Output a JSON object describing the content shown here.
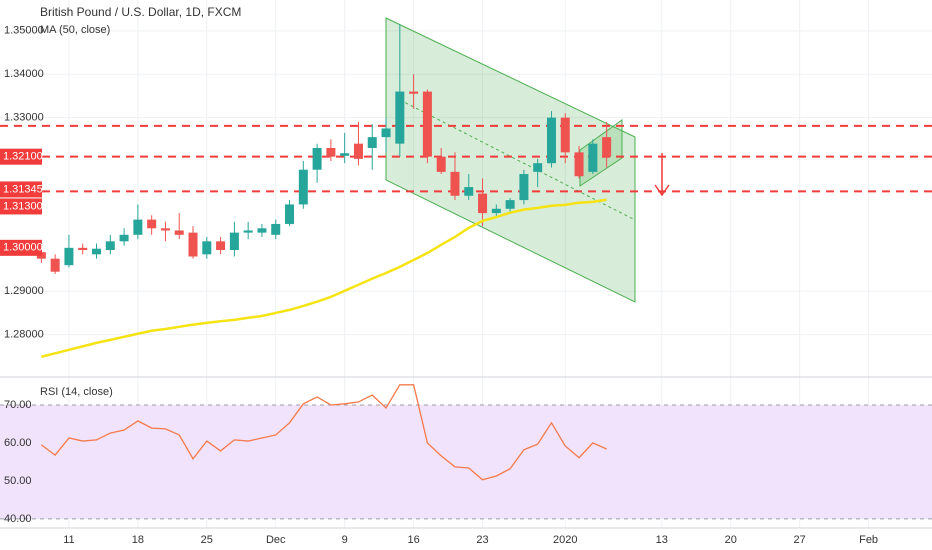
{
  "chart_data": [
    {
      "type": "candlestick",
      "title": "British Pound / U.S. Dollar, 1D, FXCM",
      "indicator": "MA (50, close)",
      "x": [
        0,
        1,
        2,
        3,
        4,
        5,
        6,
        7,
        8,
        9,
        10,
        11,
        12,
        13,
        14,
        15,
        16,
        17,
        18,
        19,
        20,
        21,
        22,
        23,
        24,
        25,
        26,
        27,
        28,
        29,
        30,
        31,
        32,
        33,
        34,
        35,
        36,
        37,
        38,
        39,
        40,
        41
      ],
      "open": [
        1.299,
        1.2975,
        1.296,
        1.3,
        1.2985,
        1.2995,
        1.3015,
        1.303,
        1.3065,
        1.3045,
        1.304,
        1.3035,
        1.2985,
        1.3015,
        1.2995,
        1.3035,
        1.3035,
        1.303,
        1.3055,
        1.31,
        1.318,
        1.323,
        1.3212,
        1.324,
        1.323,
        1.3255,
        1.324,
        1.336,
        1.336,
        1.321,
        1.3175,
        1.312,
        1.3125,
        1.308,
        1.309,
        1.311,
        1.3175,
        1.3195,
        1.33,
        1.322,
        1.3175,
        1.3255
      ],
      "high": [
        1.301,
        1.2985,
        1.303,
        1.301,
        1.301,
        1.303,
        1.3045,
        1.31,
        1.3075,
        1.306,
        1.308,
        1.305,
        1.3025,
        1.3025,
        1.306,
        1.306,
        1.3055,
        1.3065,
        1.311,
        1.32,
        1.324,
        1.325,
        1.3265,
        1.329,
        1.3285,
        1.33,
        1.3515,
        1.34,
        1.3365,
        1.323,
        1.322,
        1.317,
        1.316,
        1.31,
        1.3115,
        1.318,
        1.3205,
        1.3315,
        1.331,
        1.3235,
        1.325,
        1.329
      ],
      "low": [
        1.2965,
        1.294,
        1.2955,
        1.2985,
        1.2975,
        1.2985,
        1.3005,
        1.302,
        1.303,
        1.3015,
        1.302,
        1.2975,
        1.2975,
        1.2985,
        1.298,
        1.302,
        1.3025,
        1.302,
        1.305,
        1.309,
        1.315,
        1.32,
        1.3195,
        1.319,
        1.318,
        1.322,
        1.321,
        1.332,
        1.3195,
        1.317,
        1.311,
        1.311,
        1.305,
        1.307,
        1.308,
        1.31,
        1.314,
        1.3185,
        1.3195,
        1.316,
        1.317,
        1.3185
      ],
      "close": [
        1.2975,
        1.2945,
        1.3,
        1.2995,
        1.2998,
        1.3015,
        1.303,
        1.3065,
        1.3045,
        1.304,
        1.303,
        1.298,
        1.3015,
        1.2995,
        1.3035,
        1.304,
        1.3045,
        1.3055,
        1.31,
        1.318,
        1.323,
        1.321,
        1.3218,
        1.3205,
        1.3255,
        1.3275,
        1.336,
        1.3355,
        1.321,
        1.3175,
        1.312,
        1.314,
        1.308,
        1.309,
        1.311,
        1.317,
        1.3195,
        1.33,
        1.322,
        1.3165,
        1.324,
        1.321
      ],
      "ma": [
        1.2749,
        1.2757,
        1.2765,
        1.2773,
        1.2781,
        1.2788,
        1.2795,
        1.2802,
        1.2809,
        1.2813,
        1.2818,
        1.2823,
        1.2827,
        1.2831,
        1.2834,
        1.2839,
        1.2843,
        1.285,
        1.2857,
        1.2866,
        1.2876,
        1.2887,
        1.2901,
        1.2915,
        1.2929,
        1.2942,
        1.2956,
        1.2972,
        1.2988,
        1.3007,
        1.3025,
        1.3046,
        1.3062,
        1.3071,
        1.3081,
        1.3088,
        1.3092,
        1.3097,
        1.3099,
        1.3104,
        1.3106,
        1.3111
      ],
      "up_color": "#26a69a",
      "down_color": "#ef5350",
      "ma_color": "#f5e313",
      "xlim": [
        -3,
        64.6
      ],
      "ylim": [
        1.2707,
        1.3571
      ],
      "yticks": [
        {
          "value": 1.35,
          "label": "1.35000"
        },
        {
          "value": 1.34,
          "label": "1.34000"
        },
        {
          "value": 1.33,
          "label": "1.33000"
        },
        {
          "value": 1.29,
          "label": "1.29000"
        },
        {
          "value": 1.28,
          "label": "1.28000"
        }
      ],
      "levels": [
        1.3281,
        1.321,
        1.313
      ],
      "level_color": "#f23b3b",
      "price_tags": [
        {
          "value": 1.321,
          "label": "1.32100"
        },
        {
          "value": 1.31345,
          "label": "1.31345"
        },
        {
          "value": 1.313,
          "label": "1.31300"
        },
        {
          "value": 1.3,
          "label": "1.30000"
        }
      ]
    },
    {
      "type": "line",
      "title": "RSI (14, close)",
      "x": [
        0,
        1,
        2,
        3,
        4,
        5,
        6,
        7,
        8,
        9,
        10,
        11,
        12,
        13,
        14,
        15,
        16,
        17,
        18,
        19,
        20,
        21,
        22,
        23,
        24,
        25,
        26,
        27,
        28,
        29,
        30,
        31,
        32,
        33,
        34,
        35,
        36,
        37,
        38,
        39,
        40,
        41
      ],
      "values": [
        59.5,
        56.8,
        61.3,
        60.5,
        60.8,
        62.6,
        63.4,
        65.8,
        63.9,
        63.7,
        62.1,
        55.8,
        60.5,
        57.9,
        60.8,
        60.5,
        61.3,
        62.1,
        65.3,
        70.3,
        72.1,
        70.0,
        70.3,
        70.8,
        72.6,
        69.2,
        75.3,
        75.3,
        60.0,
        56.6,
        53.7,
        53.4,
        50.3,
        51.3,
        53.2,
        58.2,
        59.7,
        65.3,
        59.2,
        56.1,
        60.0,
        58.4
      ],
      "color": "#f5794a",
      "band": [
        40,
        70
      ],
      "band_color": "#f1e3fb",
      "xlim": [
        -3,
        64.6
      ],
      "ylim": [
        37.6,
        77.1
      ],
      "yticks": [
        {
          "value": 70,
          "label": "70.00"
        },
        {
          "value": 60,
          "label": "60.00"
        },
        {
          "value": 50,
          "label": "50.00"
        },
        {
          "value": 40,
          "label": "40.00"
        }
      ],
      "xticks": [
        {
          "value": 2,
          "label": "11"
        },
        {
          "value": 7,
          "label": "18"
        },
        {
          "value": 12,
          "label": "25"
        },
        {
          "value": 17,
          "label": "Dec"
        },
        {
          "value": 22,
          "label": "9"
        },
        {
          "value": 27,
          "label": "16"
        },
        {
          "value": 32,
          "label": "23"
        },
        {
          "value": 38,
          "label": "2020"
        },
        {
          "value": 45,
          "label": "13"
        },
        {
          "value": 50,
          "label": "20"
        },
        {
          "value": 55,
          "label": "27"
        },
        {
          "value": 60,
          "label": "Feb"
        }
      ]
    }
  ]
}
